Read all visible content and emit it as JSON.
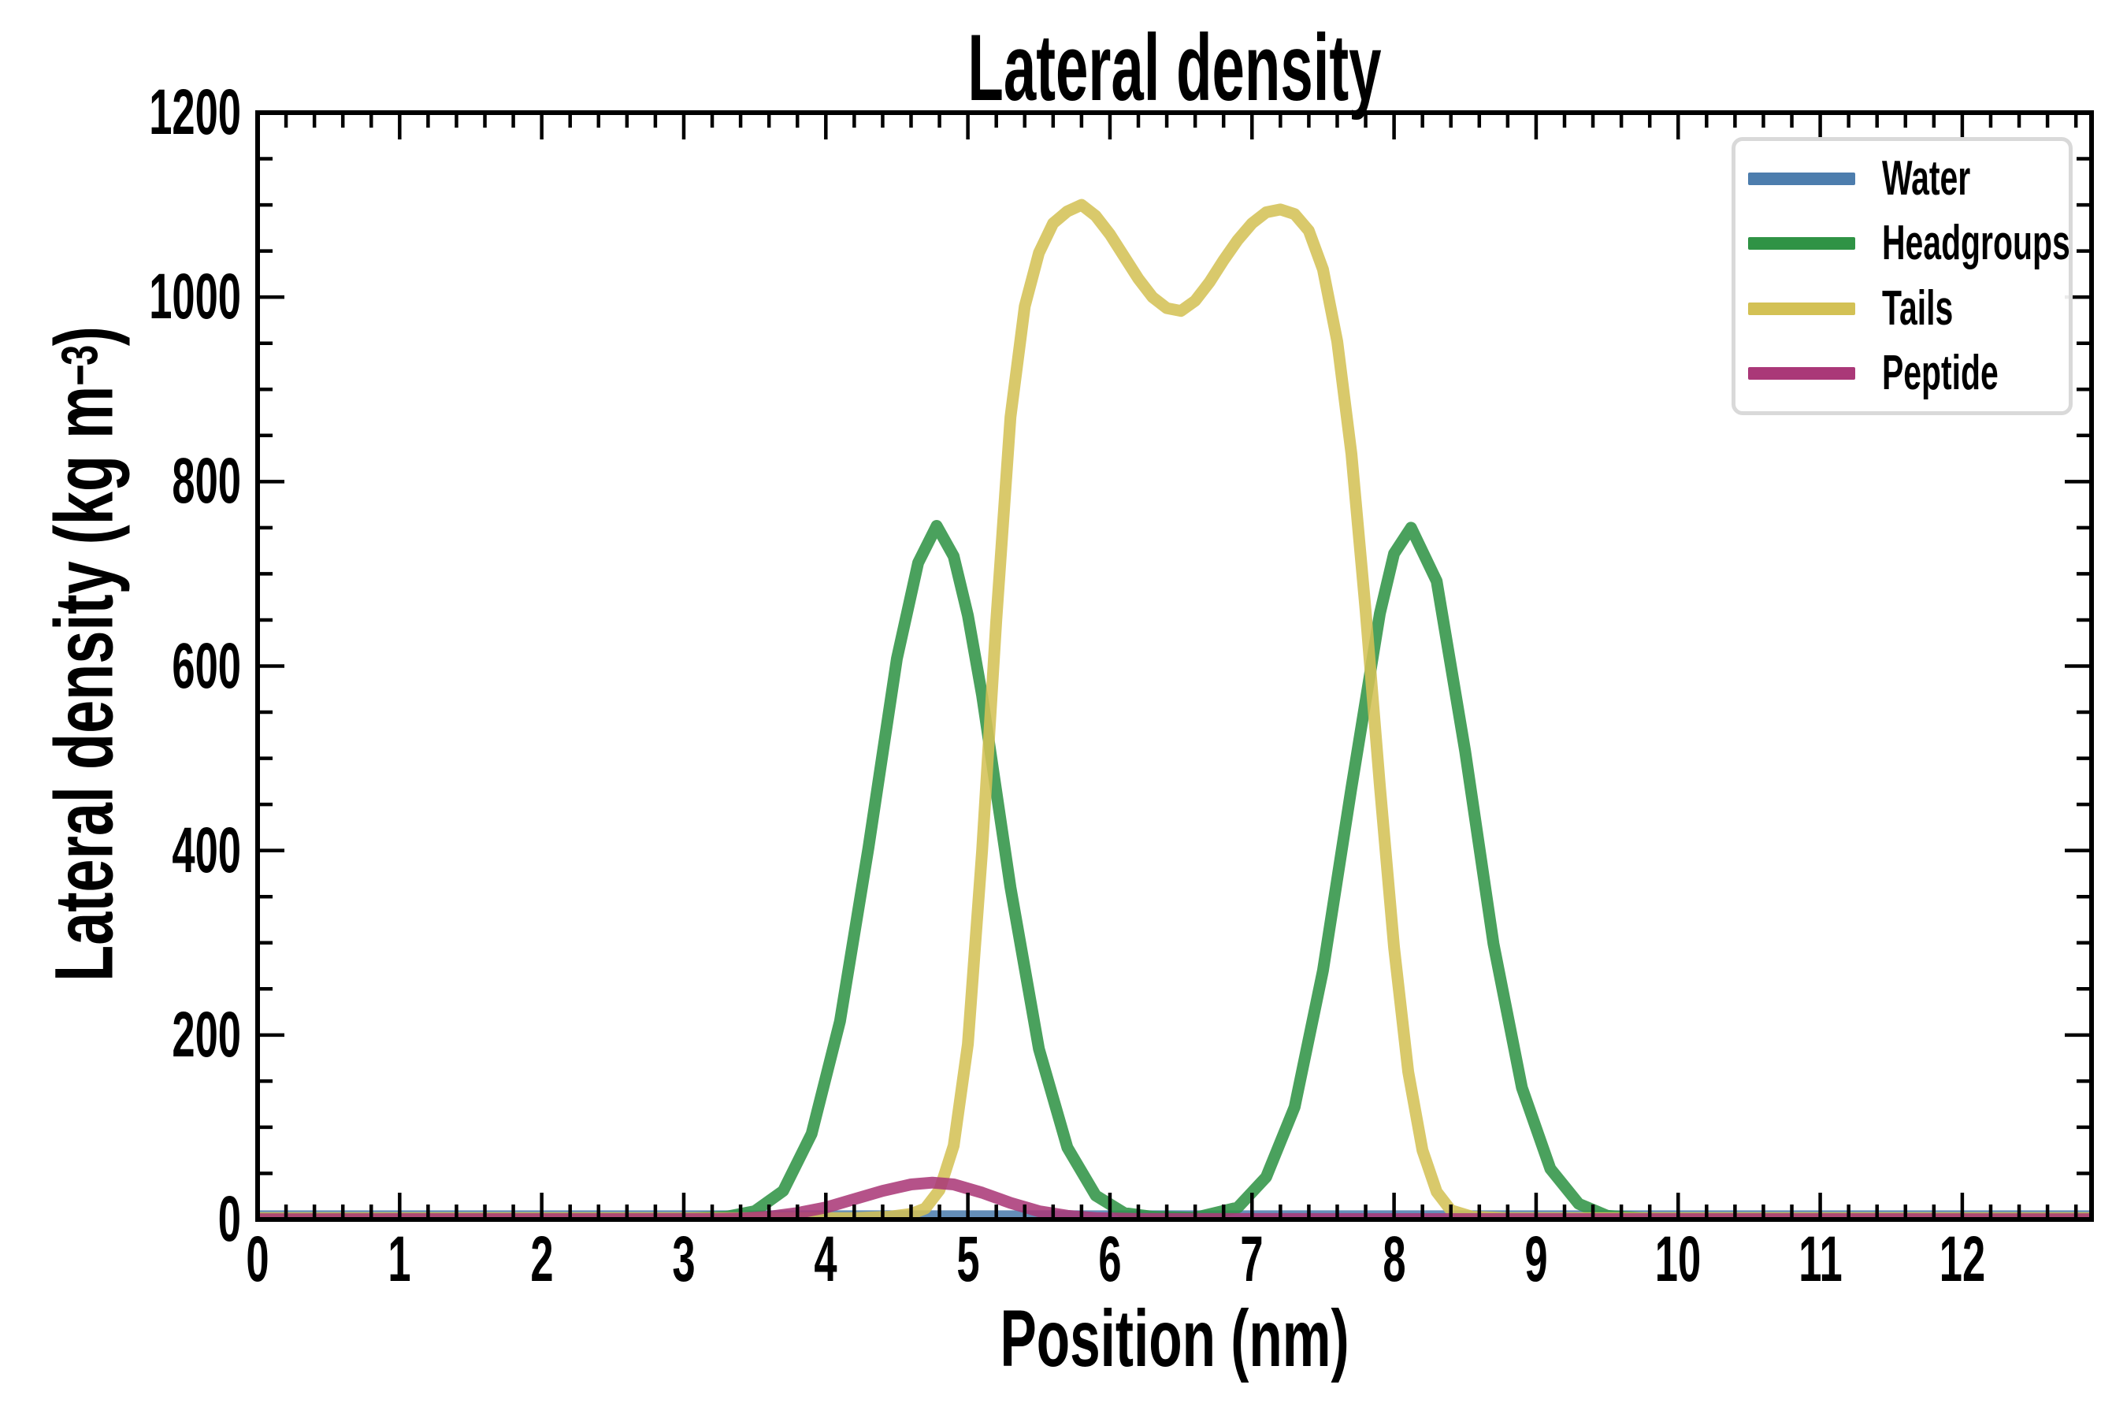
{
  "title": "Lateral density",
  "axes": {
    "xlabel": "Position (nm)",
    "ylabel_prefix": "Lateral density (kg m",
    "ylabel_sup": "−3",
    "ylabel_suffix": ")",
    "x_tick_labels": [
      "0",
      "1",
      "2",
      "3",
      "4",
      "5",
      "6",
      "7",
      "8",
      "9",
      "10",
      "11",
      "12"
    ],
    "y_tick_labels": [
      "0",
      "200",
      "400",
      "600",
      "800",
      "1000",
      "1200"
    ]
  },
  "legend": {
    "entries": [
      {
        "label": "Water",
        "color": "#4d7dad"
      },
      {
        "label": "Headgroups",
        "color": "#2f9345"
      },
      {
        "label": "Tails",
        "color": "#d3c155"
      },
      {
        "label": "Peptide",
        "color": "#aa3878"
      }
    ]
  },
  "chart_data": {
    "type": "line",
    "title": "Lateral density",
    "xlabel": "Position (nm)",
    "ylabel": "Lateral density (kg m^-3)",
    "xlim": [
      0,
      12.91
    ],
    "ylim": [
      0,
      1200
    ],
    "x_major_ticks": [
      0,
      1,
      2,
      3,
      4,
      5,
      6,
      7,
      8,
      9,
      10,
      11,
      12
    ],
    "x_minor_step": 0.2,
    "y_major_ticks": [
      0,
      200,
      400,
      600,
      800,
      1000,
      1200
    ],
    "y_minor_step": 50,
    "grid": false,
    "legend_position": "upper right",
    "line_width": 15,
    "line_opacity": 0.87,
    "frame_color": "#000000",
    "series": [
      {
        "name": "Water",
        "color": "#4d7dad",
        "points": [
          [
            0,
            3.5
          ],
          [
            12.91,
            3.5
          ]
        ]
      },
      {
        "name": "Headgroups",
        "color": "#2f9345",
        "points": [
          [
            0,
            0.8
          ],
          [
            3.0,
            1
          ],
          [
            3.3,
            3
          ],
          [
            3.5,
            9
          ],
          [
            3.7,
            31
          ],
          [
            3.9,
            93
          ],
          [
            4.1,
            215
          ],
          [
            4.3,
            403
          ],
          [
            4.5,
            608
          ],
          [
            4.65,
            712
          ],
          [
            4.78,
            752
          ],
          [
            4.9,
            719
          ],
          [
            5.0,
            655
          ],
          [
            5.1,
            568
          ],
          [
            5.3,
            360
          ],
          [
            5.5,
            185
          ],
          [
            5.7,
            78
          ],
          [
            5.9,
            26
          ],
          [
            6.1,
            7
          ],
          [
            6.3,
            3
          ],
          [
            6.6,
            2
          ],
          [
            6.9,
            13
          ],
          [
            7.1,
            46
          ],
          [
            7.3,
            122
          ],
          [
            7.5,
            270
          ],
          [
            7.7,
            468
          ],
          [
            7.9,
            657
          ],
          [
            8.0,
            722
          ],
          [
            8.12,
            750
          ],
          [
            8.3,
            692
          ],
          [
            8.5,
            508
          ],
          [
            8.7,
            299
          ],
          [
            8.9,
            143
          ],
          [
            9.1,
            55
          ],
          [
            9.3,
            17
          ],
          [
            9.5,
            4
          ],
          [
            9.8,
            1
          ],
          [
            10.2,
            0.8
          ],
          [
            12.91,
            0.8
          ]
        ]
      },
      {
        "name": "Tails",
        "color": "#d3c155",
        "points": [
          [
            0,
            1.5
          ],
          [
            4.2,
            1.5
          ],
          [
            4.45,
            3
          ],
          [
            4.6,
            6
          ],
          [
            4.7,
            12
          ],
          [
            4.8,
            32
          ],
          [
            4.9,
            80
          ],
          [
            5.0,
            190
          ],
          [
            5.1,
            400
          ],
          [
            5.2,
            650
          ],
          [
            5.3,
            870
          ],
          [
            5.4,
            990
          ],
          [
            5.5,
            1048
          ],
          [
            5.6,
            1080
          ],
          [
            5.7,
            1093
          ],
          [
            5.8,
            1100
          ],
          [
            5.9,
            1088
          ],
          [
            6.0,
            1068
          ],
          [
            6.1,
            1044
          ],
          [
            6.2,
            1020
          ],
          [
            6.3,
            1000
          ],
          [
            6.4,
            988
          ],
          [
            6.5,
            985
          ],
          [
            6.6,
            996
          ],
          [
            6.7,
            1016
          ],
          [
            6.8,
            1040
          ],
          [
            6.9,
            1062
          ],
          [
            7.0,
            1080
          ],
          [
            7.1,
            1092
          ],
          [
            7.2,
            1095
          ],
          [
            7.3,
            1090
          ],
          [
            7.4,
            1072
          ],
          [
            7.5,
            1030
          ],
          [
            7.6,
            952
          ],
          [
            7.7,
            830
          ],
          [
            7.8,
            660
          ],
          [
            7.9,
            470
          ],
          [
            8.0,
            295
          ],
          [
            8.1,
            160
          ],
          [
            8.2,
            75
          ],
          [
            8.3,
            30
          ],
          [
            8.4,
            10
          ],
          [
            8.55,
            3
          ],
          [
            8.8,
            1.5
          ],
          [
            12.91,
            1.5
          ]
        ]
      },
      {
        "name": "Peptide",
        "color": "#aa3878",
        "points": [
          [
            0,
            0.3
          ],
          [
            3.2,
            0.5
          ],
          [
            3.4,
            1
          ],
          [
            3.6,
            3
          ],
          [
            3.8,
            7
          ],
          [
            4.0,
            13
          ],
          [
            4.2,
            22
          ],
          [
            4.4,
            31
          ],
          [
            4.6,
            38
          ],
          [
            4.75,
            40
          ],
          [
            4.9,
            38
          ],
          [
            5.1,
            29
          ],
          [
            5.3,
            18
          ],
          [
            5.5,
            9
          ],
          [
            5.7,
            4
          ],
          [
            5.9,
            1.5
          ],
          [
            6.2,
            0.5
          ],
          [
            12.91,
            0.3
          ]
        ]
      }
    ]
  },
  "style": {
    "legend_border_color": "#d9d9d9",
    "tick_color": "#000000"
  }
}
